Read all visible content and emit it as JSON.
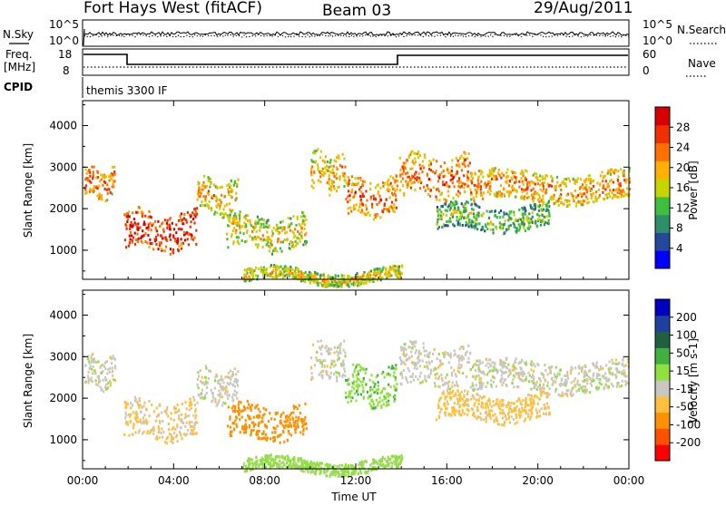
{
  "header": {
    "station": "Fort Hays West (fitACF)",
    "beam": "Beam 03",
    "date": "29/Aug/2011"
  },
  "strip": {
    "nsky_label": "N.Sky",
    "nsky_ticks": [
      "10^5",
      "10^0"
    ],
    "nsearch_label": "N.Search",
    "nsearch_ticks": [
      "10^5",
      "10^0"
    ],
    "freq_label": "Freq.",
    "freq_unit": "[MHz]",
    "freq_ticks": [
      "18",
      "8"
    ],
    "nave_label": "Nave",
    "nave_ticks": [
      "60",
      "0"
    ],
    "cpid_label": "CPID",
    "cpid_text": "themis 3300 IF"
  },
  "colors": {
    "power": [
      "#0000ff",
      "#24489c",
      "#2f8f6a",
      "#3fbf3f",
      "#c8d400",
      "#ffb000",
      "#ff7000",
      "#f03000",
      "#d80000"
    ],
    "velocity": [
      "#ff0000",
      "#ff5000",
      "#ff9000",
      "#ffc040",
      "#c8c8c0",
      "#90e040",
      "#40b040",
      "#206040",
      "#2040a0",
      "#0000c0"
    ]
  },
  "chart_data": [
    {
      "type": "heatmap",
      "name": "power",
      "ylabel": "Slant Range [km]",
      "yticks": [
        "4000",
        "3000",
        "2000",
        "1000"
      ],
      "ylim": [
        300,
        4600
      ],
      "xticks": [
        "00:00",
        "04:00",
        "08:00",
        "12:00",
        "16:00",
        "20:00",
        "00:00"
      ],
      "xlim_hours": [
        0,
        24
      ],
      "colorbar_label": "Power [dB]",
      "colorbar_ticks": [
        "28",
        "24",
        "20",
        "16",
        "12",
        "8",
        "4"
      ],
      "colorbar_range": [
        0,
        30
      ],
      "regions": [
        {
          "t0": 0.05,
          "t1": 1.4,
          "r_center": 2650,
          "r_width": 350,
          "value": 18
        },
        {
          "t0": 1.8,
          "t1": 5.0,
          "r_center": 1500,
          "r_width": 450,
          "value": 22
        },
        {
          "t0": 5.0,
          "t1": 6.8,
          "r_center": 2300,
          "r_width": 400,
          "value": 14
        },
        {
          "t0": 6.3,
          "t1": 9.8,
          "r_center": 1450,
          "r_width": 400,
          "value": 12
        },
        {
          "t0": 10.0,
          "t1": 11.5,
          "r_center": 2900,
          "r_width": 450,
          "value": 14
        },
        {
          "t0": 11.5,
          "t1": 13.8,
          "r_center": 2300,
          "r_width": 450,
          "value": 18
        },
        {
          "t0": 13.9,
          "t1": 17.0,
          "r_center": 2800,
          "r_width": 500,
          "value": 18
        },
        {
          "t0": 17.0,
          "t1": 24.0,
          "r_center": 2550,
          "r_width": 350,
          "value": 16
        },
        {
          "t0": 15.5,
          "t1": 20.5,
          "r_center": 1800,
          "r_width": 300,
          "value": 8
        },
        {
          "t0": 7.0,
          "t1": 14.0,
          "r_center": 400,
          "r_width": 150,
          "value": 12
        }
      ]
    },
    {
      "type": "heatmap",
      "name": "velocity",
      "ylabel": "Slant Range [km]",
      "yticks": [
        "4000",
        "3000",
        "2000",
        "1000"
      ],
      "ylim": [
        300,
        4600
      ],
      "xticks": [
        "00:00",
        "04:00",
        "08:00",
        "12:00",
        "16:00",
        "20:00",
        "00:00"
      ],
      "xlabel": "Time UT",
      "xlim_hours": [
        0,
        24
      ],
      "colorbar_label": "Velocity [m s-1]",
      "colorbar_ticks": [
        "200",
        "100",
        "50",
        "15",
        "-15",
        "-50",
        "-100",
        "-200"
      ],
      "regions": [
        {
          "t0": 0.05,
          "t1": 1.4,
          "r_center": 2650,
          "r_width": 350,
          "value": 0
        },
        {
          "t0": 1.8,
          "t1": 5.0,
          "r_center": 1500,
          "r_width": 450,
          "value": -20
        },
        {
          "t0": 5.0,
          "t1": 6.8,
          "r_center": 2300,
          "r_width": 400,
          "value": 0
        },
        {
          "t0": 6.3,
          "t1": 9.8,
          "r_center": 1450,
          "r_width": 400,
          "value": -80
        },
        {
          "t0": 10.0,
          "t1": 11.5,
          "r_center": 2900,
          "r_width": 450,
          "value": 0
        },
        {
          "t0": 11.5,
          "t1": 13.8,
          "r_center": 2300,
          "r_width": 450,
          "value": 40
        },
        {
          "t0": 13.9,
          "t1": 17.0,
          "r_center": 2800,
          "r_width": 500,
          "value": 0
        },
        {
          "t0": 17.0,
          "t1": 24.0,
          "r_center": 2550,
          "r_width": 350,
          "value": 0
        },
        {
          "t0": 15.5,
          "t1": 20.5,
          "r_center": 1800,
          "r_width": 300,
          "value": -30
        },
        {
          "t0": 7.0,
          "t1": 14.0,
          "r_center": 400,
          "r_width": 150,
          "value": 30
        }
      ]
    }
  ]
}
